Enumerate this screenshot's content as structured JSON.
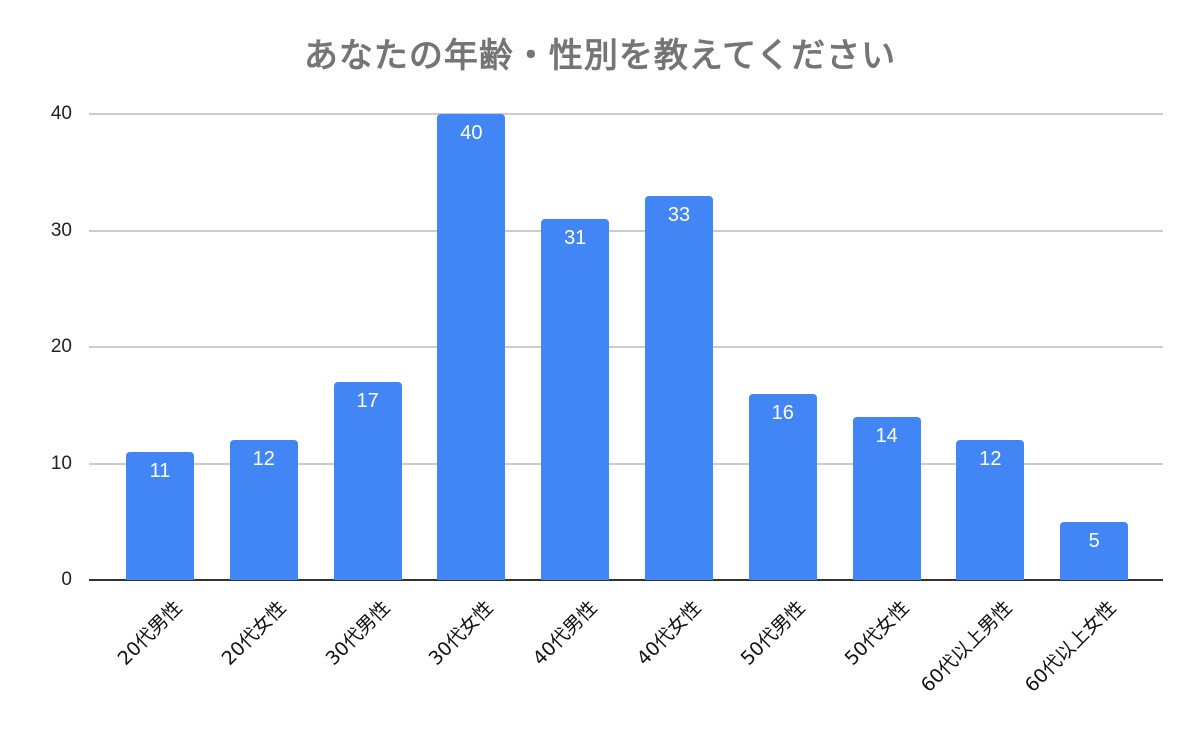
{
  "chart_data": {
    "type": "bar",
    "title": "あなたの年齢・性別を教えてください",
    "xlabel": "",
    "ylabel": "",
    "categories": [
      "20代男性",
      "20代女性",
      "30代男性",
      "30代女性",
      "40代男性",
      "40代女性",
      "50代男性",
      "50代女性",
      "60代以上男性",
      "60代以上女性"
    ],
    "values": [
      11,
      12,
      17,
      40,
      31,
      33,
      16,
      14,
      12,
      5
    ],
    "ylim": [
      0,
      40
    ],
    "yticks": [
      "0",
      "10",
      "20",
      "30",
      "40"
    ],
    "grid": true,
    "legend": "none",
    "bar_color": "#4285f4",
    "data_labels": true
  }
}
